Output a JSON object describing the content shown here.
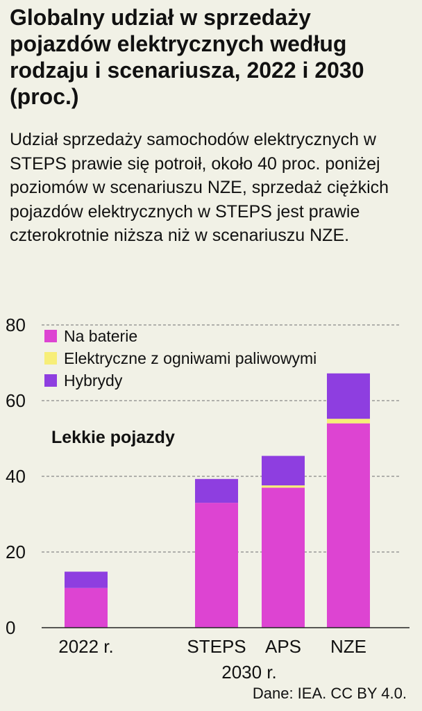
{
  "title": "Globalny udział w sprzedaży pojazdów elektrycznych według rodzaju i scenariusza, 2022 i 2030 (proc.)",
  "subtitle": "Udział sprzedaży samochodów elektrycznych w STEPS prawie się potroił, około 40 proc. poniżej poziomów w scenariuszu NZE, sprzedaż ciężkich pojazdów elektrycznych w STEPS jest prawie czterokrotnie niższa niż w scenariuszu NZE.",
  "source": "Dane: IEA. CC BY 4.0.",
  "chart_data": {
    "type": "bar",
    "stacked": true,
    "panel_label": "Lekkie pojazdy",
    "categories": [
      "2022 r.",
      "STEPS",
      "APS",
      "NZE"
    ],
    "group_label": "2030 r.",
    "ylim": [
      0,
      80
    ],
    "yticks": [
      0,
      20,
      40,
      60,
      80
    ],
    "grid": true,
    "legend_position": "top-left",
    "series": [
      {
        "name": "Na baterie",
        "color": "#dd44d2",
        "values": [
          10.5,
          33,
          37,
          54
        ]
      },
      {
        "name": "Elektryczne z ogniwami paliwowymi",
        "color": "#f7ee78",
        "values": [
          0,
          0,
          0.6,
          1.2
        ]
      },
      {
        "name": "Hybrydy",
        "color": "#8e3ee0",
        "values": [
          4.3,
          6.3,
          7.8,
          12
        ]
      }
    ]
  }
}
